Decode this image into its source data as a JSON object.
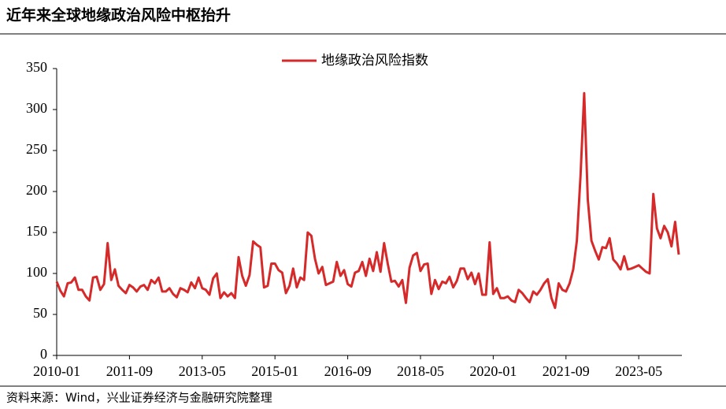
{
  "chart_data": {
    "type": "line",
    "title": "近年来全球地缘政治风险中枢抬升",
    "source": "资料来源：Wind，兴业证券经济与金融研究院整理",
    "categories": [
      "2010-01",
      null,
      null,
      null,
      null,
      null,
      null,
      null,
      null,
      null,
      null,
      null,
      null,
      null,
      null,
      null,
      null,
      null,
      null,
      null,
      "2011-09",
      null,
      null,
      null,
      null,
      null,
      null,
      null,
      null,
      null,
      null,
      null,
      null,
      null,
      null,
      null,
      null,
      null,
      null,
      null,
      "2013-05",
      null,
      null,
      null,
      null,
      null,
      null,
      null,
      null,
      null,
      null,
      null,
      null,
      null,
      null,
      null,
      null,
      null,
      null,
      null,
      "2015-01",
      null,
      null,
      null,
      null,
      null,
      null,
      null,
      null,
      null,
      null,
      null,
      null,
      null,
      null,
      null,
      null,
      null,
      null,
      null,
      "2016-09",
      null,
      null,
      null,
      null,
      null,
      null,
      null,
      null,
      null,
      null,
      null,
      null,
      null,
      null,
      null,
      null,
      null,
      null,
      null,
      "2018-05",
      null,
      null,
      null,
      null,
      null,
      null,
      null,
      null,
      null,
      null,
      null,
      null,
      null,
      null,
      null,
      null,
      null,
      null,
      null,
      "2020-01",
      null,
      null,
      null,
      null,
      null,
      null,
      null,
      null,
      null,
      null,
      null,
      null,
      null,
      null,
      null,
      null,
      null,
      null,
      null,
      "2021-09",
      null,
      null,
      null,
      null,
      null,
      null,
      null,
      null,
      null,
      null,
      null,
      null,
      null,
      null,
      null,
      null,
      null,
      null,
      null,
      "2023-05",
      null,
      null,
      null,
      null,
      null,
      null,
      null,
      null,
      null,
      null,
      null
    ],
    "series": [
      {
        "name": "地缘政治风险指数",
        "color": "#d62a2a",
        "values": [
          90,
          79,
          72,
          88,
          89,
          95,
          80,
          80,
          72,
          67,
          95,
          96,
          80,
          87,
          137,
          92,
          105,
          85,
          80,
          76,
          86,
          83,
          78,
          84,
          86,
          80,
          92,
          88,
          95,
          78,
          78,
          82,
          75,
          71,
          82,
          80,
          77,
          89,
          82,
          95,
          82,
          80,
          74,
          94,
          100,
          70,
          77,
          72,
          76,
          70,
          120,
          97,
          85,
          98,
          139,
          135,
          132,
          83,
          85,
          112,
          112,
          104,
          101,
          76,
          85,
          106,
          83,
          95,
          92,
          150,
          146,
          118,
          100,
          108,
          86,
          88,
          90,
          114,
          97,
          104,
          87,
          84,
          101,
          103,
          114,
          97,
          118,
          103,
          126,
          102,
          137,
          112,
          90,
          91,
          84,
          92,
          64,
          107,
          122,
          125,
          103,
          111,
          112,
          75,
          92,
          81,
          90,
          88,
          96,
          83,
          91,
          106,
          106,
          93,
          101,
          87,
          100,
          74,
          74,
          138,
          75,
          82,
          70,
          70,
          72,
          67,
          65,
          80,
          76,
          70,
          65,
          78,
          74,
          80,
          88,
          93,
          70,
          58,
          88,
          80,
          78,
          88,
          105,
          140,
          220,
          320,
          190,
          140,
          128,
          117,
          132,
          131,
          143,
          117,
          112,
          105,
          121,
          105,
          106,
          108,
          110,
          106,
          102,
          100,
          197,
          155,
          143,
          158,
          150,
          133,
          163,
          123
        ]
      }
    ],
    "ylim": [
      0,
      350
    ],
    "yticks": [
      0,
      50,
      100,
      150,
      200,
      250,
      300,
      350
    ],
    "legend": "top"
  }
}
